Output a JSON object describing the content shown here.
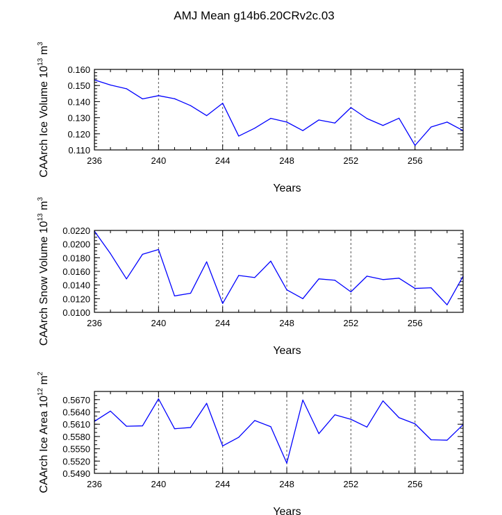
{
  "figure": {
    "title": "AMJ Mean g14b6.20CRv2c.03"
  },
  "colors": {
    "line": "#0000ff",
    "axis": "#000000",
    "grid": "#555555"
  },
  "chart_data": [
    {
      "type": "line",
      "ylabel": {
        "base": "CAArch Ice Volume 10",
        "exp": "13",
        "unit": " m",
        "unit_exp": "3"
      },
      "xlabel": "Years",
      "xlim": [
        236,
        259
      ],
      "xticks": [
        236,
        240,
        244,
        248,
        252,
        256
      ],
      "xtick_labels": [
        "236",
        "240",
        "244",
        "248",
        "252",
        "256"
      ],
      "ylim": [
        0.11,
        0.16
      ],
      "yticks": [
        0.11,
        0.12,
        0.13,
        0.14,
        0.15,
        0.16
      ],
      "ytick_labels": [
        "0.110",
        "0.120",
        "0.130",
        "0.140",
        "0.150",
        "0.160"
      ],
      "yminor": 0.002,
      "x": [
        236,
        237,
        238,
        239,
        240,
        241,
        242,
        243,
        244,
        245,
        246,
        247,
        248,
        249,
        250,
        251,
        252,
        253,
        254,
        255,
        256,
        257,
        258,
        259
      ],
      "series": [
        {
          "name": "CAArch Ice Volume",
          "values": [
            0.1535,
            0.1503,
            0.148,
            0.1417,
            0.1437,
            0.1418,
            0.1375,
            0.1313,
            0.139,
            0.1186,
            0.1235,
            0.1296,
            0.1273,
            0.122,
            0.1286,
            0.1267,
            0.1363,
            0.1295,
            0.1252,
            0.1297,
            0.1128,
            0.1242,
            0.1273,
            0.122
          ]
        }
      ]
    },
    {
      "type": "line",
      "ylabel": {
        "base": "CAArch Snow Volume 10",
        "exp": "13",
        "unit": " m",
        "unit_exp": "3"
      },
      "xlabel": "Years",
      "xlim": [
        236,
        259
      ],
      "xticks": [
        236,
        240,
        244,
        248,
        252,
        256
      ],
      "xtick_labels": [
        "236",
        "240",
        "244",
        "248",
        "252",
        "256"
      ],
      "ylim": [
        0.01,
        0.022
      ],
      "yticks": [
        0.01,
        0.012,
        0.014,
        0.016,
        0.018,
        0.02,
        0.022
      ],
      "ytick_labels": [
        "0.0100",
        "0.0120",
        "0.0140",
        "0.0160",
        "0.0180",
        "0.0200",
        "0.0220"
      ],
      "yminor": 0.0005,
      "x": [
        236,
        237,
        238,
        239,
        240,
        241,
        242,
        243,
        244,
        245,
        246,
        247,
        248,
        249,
        250,
        251,
        252,
        253,
        254,
        255,
        256,
        257,
        258,
        259
      ],
      "series": [
        {
          "name": "CAArch Snow Volume",
          "values": [
            0.0219,
            0.0186,
            0.0149,
            0.0185,
            0.0192,
            0.0124,
            0.0128,
            0.0174,
            0.0113,
            0.0154,
            0.0151,
            0.0175,
            0.0133,
            0.012,
            0.0149,
            0.0147,
            0.013,
            0.0153,
            0.0148,
            0.015,
            0.0135,
            0.0136,
            0.0111,
            0.0153
          ]
        }
      ]
    },
    {
      "type": "line",
      "ylabel": {
        "base": "CAArch Ice Area 10",
        "exp": "12",
        "unit": " m",
        "unit_exp": "2"
      },
      "xlabel": "Years",
      "xlim": [
        236,
        259
      ],
      "xticks": [
        236,
        240,
        244,
        248,
        252,
        256
      ],
      "xtick_labels": [
        "236",
        "240",
        "244",
        "248",
        "252",
        "256"
      ],
      "ylim": [
        0.549,
        0.569
      ],
      "yticks": [
        0.549,
        0.552,
        0.555,
        0.558,
        0.561,
        0.564,
        0.567
      ],
      "ytick_labels": [
        "0.5490",
        "0.5520",
        "0.5550",
        "0.5580",
        "0.5610",
        "0.5640",
        "0.5670"
      ],
      "yminor": 0.001,
      "x": [
        236,
        237,
        238,
        239,
        240,
        241,
        242,
        243,
        244,
        245,
        246,
        247,
        248,
        249,
        250,
        251,
        252,
        253,
        254,
        255,
        256,
        257,
        258,
        259
      ],
      "series": [
        {
          "name": "CAArch Ice Area",
          "values": [
            0.5617,
            0.5642,
            0.5605,
            0.5606,
            0.5672,
            0.5599,
            0.5602,
            0.5661,
            0.5557,
            0.5578,
            0.5619,
            0.5604,
            0.5515,
            0.5669,
            0.5587,
            0.5633,
            0.5622,
            0.5603,
            0.5667,
            0.5626,
            0.5611,
            0.5572,
            0.5571,
            0.5609
          ]
        }
      ]
    }
  ]
}
